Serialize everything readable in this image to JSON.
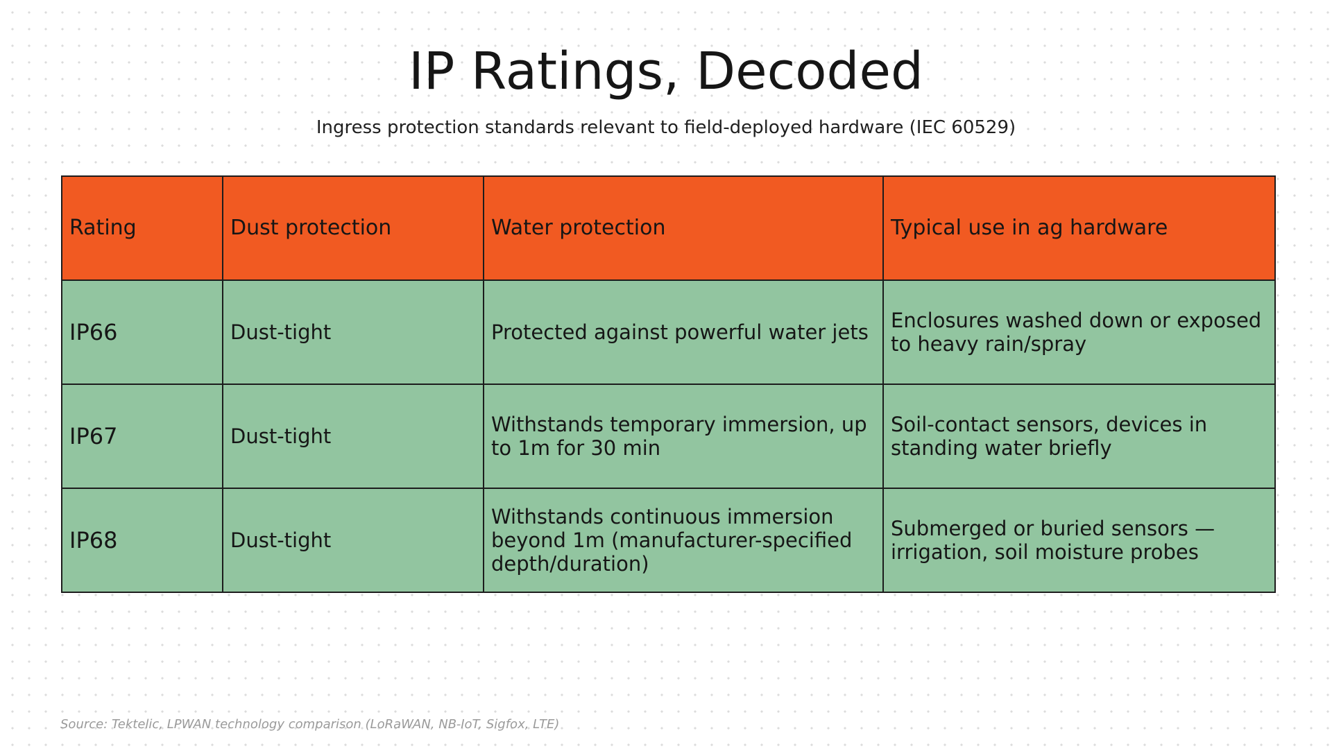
{
  "title": "IP Ratings, Decoded",
  "subtitle": "Ingress protection standards relevant to field-deployed hardware (IEC 60529)",
  "table": {
    "headers": [
      "Rating",
      "Dust protection",
      "Water protection",
      "Typical use in ag hardware"
    ],
    "rows": [
      {
        "rating": "IP66",
        "dust": "Dust-tight",
        "water": "Protected against powerful water jets",
        "use": "Enclosures washed down or exposed to heavy rain/spray"
      },
      {
        "rating": "IP67",
        "dust": "Dust-tight",
        "water": "Withstands temporary immersion, up to 1m for 30 min",
        "use": "Soil-contact sensors, devices in standing water briefly"
      },
      {
        "rating": "IP68",
        "dust": "Dust-tight",
        "water": "Withstands continuous immersion beyond 1m (manufacturer-specified depth/duration)",
        "use": "Submerged or buried sensors — irrigation, soil moisture probes"
      }
    ]
  },
  "source": "Source: Tektelic, LPWAN technology comparison (LoRaWAN, NB-IoT, Sigfox, LTE)",
  "colors": {
    "header_bg": "#f15a22",
    "row_bg": "#92c5a0",
    "border": "#1c1c1c",
    "text": "#161616"
  }
}
